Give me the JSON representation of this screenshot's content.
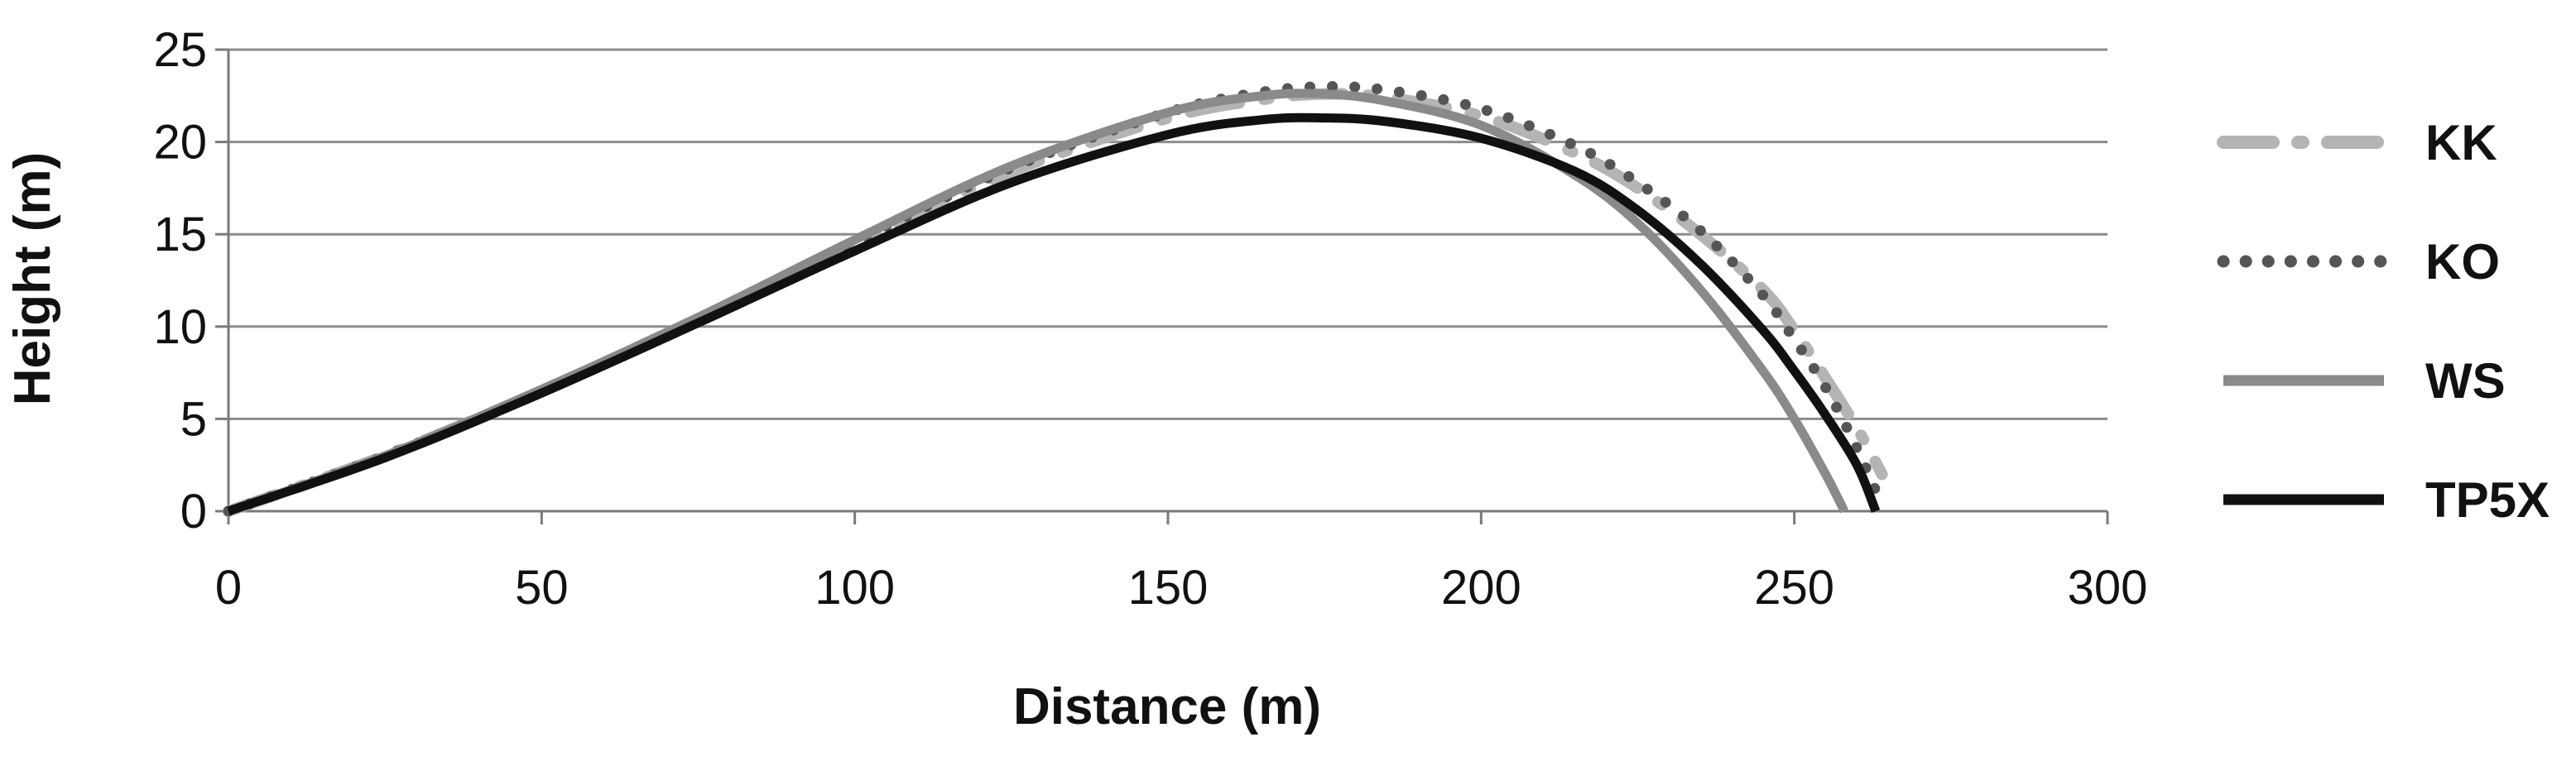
{
  "chart_data": {
    "type": "line",
    "title": "",
    "xlabel": "Distance (m)",
    "ylabel": "Height (m)",
    "xlim": [
      0,
      300
    ],
    "ylim": [
      0,
      25
    ],
    "xticks": [
      0,
      50,
      100,
      150,
      200,
      250,
      300
    ],
    "yticks": [
      0,
      5,
      10,
      15,
      20,
      25
    ],
    "grid": "horizontal",
    "legend_position": "right",
    "series": [
      {
        "name": "KK",
        "style": "dash-dot",
        "color": "#b4b4b4",
        "x": [
          0,
          25,
          50,
          75,
          100,
          125,
          150,
          165,
          175,
          185,
          200,
          215,
          225,
          235,
          245,
          250,
          255,
          260,
          264
        ],
        "y": [
          0,
          3.0,
          6.5,
          10.4,
          14.5,
          18.4,
          21.3,
          22.3,
          22.6,
          22.4,
          21.4,
          19.4,
          17.5,
          15.0,
          12.0,
          9.8,
          7.2,
          4.5,
          2.0
        ]
      },
      {
        "name": "KO",
        "style": "dotted",
        "color": "#555555",
        "x": [
          0,
          25,
          50,
          75,
          100,
          125,
          150,
          165,
          175,
          185,
          200,
          215,
          225,
          235,
          245,
          250,
          255,
          260,
          264
        ],
        "y": [
          0,
          3.0,
          6.5,
          10.4,
          14.6,
          18.6,
          21.6,
          22.7,
          23.0,
          22.8,
          21.8,
          19.8,
          17.8,
          15.2,
          11.7,
          9.3,
          6.7,
          3.4,
          0.3
        ]
      },
      {
        "name": "WS",
        "style": "solid",
        "color": "#8a8a8a",
        "x": [
          0,
          25,
          50,
          75,
          100,
          125,
          150,
          165,
          175,
          185,
          200,
          215,
          225,
          235,
          245,
          250,
          255,
          258
        ],
        "y": [
          0,
          3.0,
          6.6,
          10.5,
          14.7,
          18.7,
          21.6,
          22.5,
          22.6,
          22.2,
          20.9,
          18.2,
          15.6,
          12.0,
          7.6,
          5.0,
          2.0,
          0
        ]
      },
      {
        "name": "TP5X",
        "style": "solid",
        "color": "#111111",
        "x": [
          0,
          25,
          50,
          75,
          100,
          125,
          150,
          165,
          175,
          185,
          200,
          215,
          225,
          235,
          245,
          250,
          255,
          260,
          263
        ],
        "y": [
          0,
          2.9,
          6.4,
          10.2,
          14.1,
          17.8,
          20.4,
          21.2,
          21.3,
          21.1,
          20.2,
          18.4,
          16.3,
          13.4,
          9.8,
          7.6,
          5.2,
          2.5,
          0
        ]
      }
    ]
  }
}
